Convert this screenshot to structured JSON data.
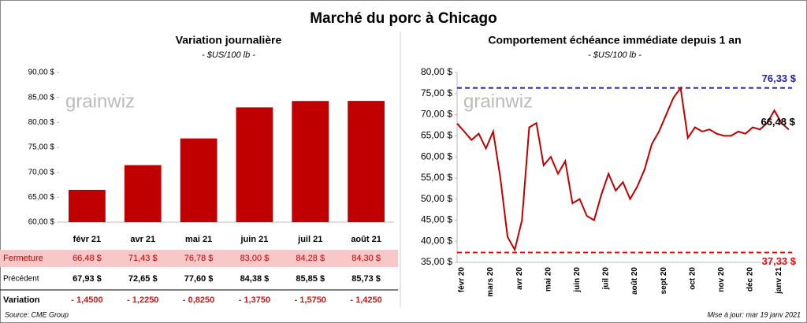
{
  "title": "Marché du porc à Chicago",
  "watermark": "grainwiz",
  "source": "Source: CME Group",
  "updated": "Mise à jour: mar 19 janv 2021",
  "chart_data": [
    {
      "type": "bar",
      "title": "Variation journalière",
      "subtitle": "- $US/100 lb -",
      "color": "#c00000",
      "categories": [
        "févr 21",
        "avr 21",
        "mai 21",
        "juin 21",
        "juil 21",
        "août 21"
      ],
      "series_label": "Fermeture",
      "values": [
        66.48,
        71.43,
        76.78,
        83.0,
        84.28,
        84.3
      ],
      "value_labels": [
        "66,48  $",
        "71,43  $",
        "76,78  $",
        "83,00  $",
        "84,28  $",
        "84,30  $"
      ],
      "ylim": [
        60,
        90
      ],
      "yticks": [
        {
          "value": 60,
          "label": "60,00 $"
        },
        {
          "value": 65,
          "label": "65,00 $"
        },
        {
          "value": 70,
          "label": "70,00 $"
        },
        {
          "value": 75,
          "label": "75,00 $"
        },
        {
          "value": 80,
          "label": "80,00 $"
        },
        {
          "value": 85,
          "label": "85,00 $"
        },
        {
          "value": 90,
          "label": "90,00 $"
        }
      ],
      "table": {
        "rows": [
          {
            "label": "Précédent",
            "cells": [
              "67,93  $",
              "72,65  $",
              "77,60  $",
              "84,38  $",
              "85,85  $",
              "85,73  $"
            ]
          },
          {
            "label": "Variation",
            "cells": [
              "- 1,4500",
              "- 1,2250",
              "- 0,8250",
              "- 1,3750",
              "- 1,5750",
              "- 1,4250"
            ]
          }
        ]
      }
    },
    {
      "type": "line",
      "title": "Comportement  échéance immédiate depuis 1 an",
      "subtitle": "- $US/100 lb -",
      "color": "#c00000",
      "xticks": [
        "févr 20",
        "mars 20",
        "avr 20",
        "mai 20",
        "juin 20",
        "juil 20",
        "août 20",
        "sept 20",
        "oct 20",
        "nov 20",
        "déc 20",
        "janv 21"
      ],
      "values": [
        67.9,
        66,
        64,
        65.5,
        62,
        66,
        55,
        41,
        38,
        45,
        67,
        68,
        58,
        60,
        56,
        59,
        49,
        50,
        46,
        45,
        51,
        56,
        52,
        54,
        50,
        53,
        57,
        63,
        66,
        70,
        74,
        76.33,
        64.5,
        67,
        66,
        66.5,
        65.5,
        65,
        65,
        66,
        65.5,
        67,
        66.5,
        68,
        71,
        68,
        66.48
      ],
      "ylim": [
        35,
        80
      ],
      "yticks": [
        {
          "value": 35,
          "label": "35,00 $"
        },
        {
          "value": 40,
          "label": "40,00 $"
        },
        {
          "value": 45,
          "label": "45,00 $"
        },
        {
          "value": 50,
          "label": "50,00 $"
        },
        {
          "value": 55,
          "label": "55,00 $"
        },
        {
          "value": 60,
          "label": "60,00 $"
        },
        {
          "value": 65,
          "label": "65,00 $"
        },
        {
          "value": 70,
          "label": "70,00 $"
        },
        {
          "value": 75,
          "label": "75,00 $"
        },
        {
          "value": 80,
          "label": "80,00 $"
        }
      ],
      "hlines": [
        {
          "value": 76.33,
          "label": "76,33 $",
          "color": "#1f1fa8"
        },
        {
          "value": 37.33,
          "label": "37,33 $",
          "color": "#e01010"
        }
      ],
      "last_label": "66,48 $"
    }
  ]
}
